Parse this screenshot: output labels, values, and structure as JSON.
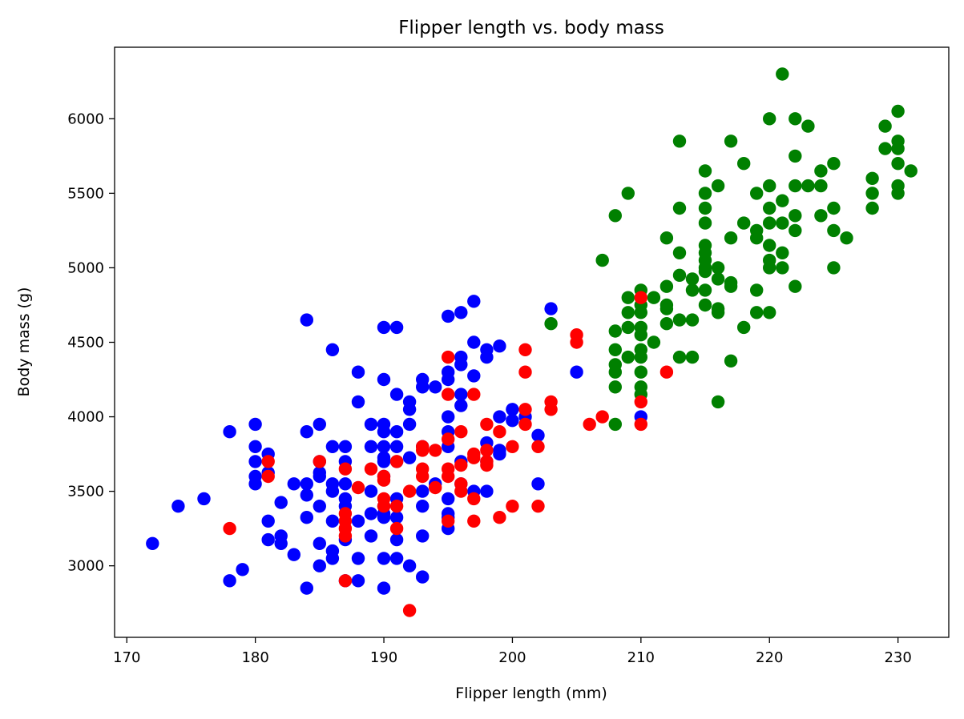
{
  "chart_data": {
    "type": "scatter",
    "title": "Flipper length vs. body mass",
    "xlabel": "Flipper length (mm)",
    "ylabel": "Body mass (g)",
    "xlim": [
      169.05,
      233.95
    ],
    "ylim": [
      2520,
      6480
    ],
    "xticks": [
      170,
      180,
      190,
      200,
      210,
      220,
      230
    ],
    "yticks": [
      3000,
      3500,
      4000,
      4500,
      5000,
      5500,
      6000
    ],
    "grid": false,
    "legend": "none",
    "series": [
      {
        "color": "#0000ff",
        "points": [
          [
            172,
            3150
          ],
          [
            174,
            3400
          ],
          [
            176,
            3450
          ],
          [
            178,
            3900
          ],
          [
            178,
            2900
          ],
          [
            179,
            2975
          ],
          [
            180,
            3950
          ],
          [
            180,
            3800
          ],
          [
            180,
            3700
          ],
          [
            180,
            3600
          ],
          [
            180,
            3550
          ],
          [
            181,
            3750
          ],
          [
            181,
            3625
          ],
          [
            181,
            3300
          ],
          [
            181,
            3175
          ],
          [
            182,
            3425
          ],
          [
            182,
            3200
          ],
          [
            182,
            3150
          ],
          [
            183,
            3550
          ],
          [
            183,
            3075
          ],
          [
            184,
            4650
          ],
          [
            184,
            3900
          ],
          [
            184,
            3550
          ],
          [
            184,
            3475
          ],
          [
            184,
            3325
          ],
          [
            184,
            2850
          ],
          [
            185,
            3950
          ],
          [
            185,
            3700
          ],
          [
            185,
            3625
          ],
          [
            185,
            3600
          ],
          [
            185,
            3400
          ],
          [
            185,
            3150
          ],
          [
            185,
            3000
          ],
          [
            186,
            4450
          ],
          [
            186,
            3800
          ],
          [
            186,
            3550
          ],
          [
            186,
            3500
          ],
          [
            186,
            3300
          ],
          [
            186,
            3100
          ],
          [
            186,
            3050
          ],
          [
            187,
            3800
          ],
          [
            187,
            3700
          ],
          [
            187,
            3550
          ],
          [
            187,
            3450
          ],
          [
            187,
            3400
          ],
          [
            187,
            3175
          ],
          [
            187,
            2900
          ],
          [
            188,
            4300
          ],
          [
            188,
            4100
          ],
          [
            188,
            3300
          ],
          [
            188,
            3050
          ],
          [
            188,
            2900
          ],
          [
            189,
            3950
          ],
          [
            189,
            3800
          ],
          [
            189,
            3500
          ],
          [
            189,
            3350
          ],
          [
            189,
            3200
          ],
          [
            190,
            4600
          ],
          [
            190,
            4250
          ],
          [
            190,
            3950
          ],
          [
            190,
            3900
          ],
          [
            190,
            3800
          ],
          [
            190,
            3725
          ],
          [
            190,
            3700
          ],
          [
            190,
            3600
          ],
          [
            190,
            3400
          ],
          [
            190,
            3350
          ],
          [
            190,
            3325
          ],
          [
            190,
            3050
          ],
          [
            190,
            2850
          ],
          [
            191,
            4600
          ],
          [
            191,
            4150
          ],
          [
            191,
            3900
          ],
          [
            191,
            3800
          ],
          [
            191,
            3700
          ],
          [
            191,
            3450
          ],
          [
            191,
            3325
          ],
          [
            191,
            3175
          ],
          [
            191,
            3050
          ],
          [
            192,
            4100
          ],
          [
            192,
            4050
          ],
          [
            192,
            3950
          ],
          [
            192,
            3725
          ],
          [
            192,
            3000
          ],
          [
            193,
            4250
          ],
          [
            193,
            4200
          ],
          [
            193,
            3800
          ],
          [
            193,
            3500
          ],
          [
            193,
            3400
          ],
          [
            193,
            3200
          ],
          [
            193,
            2925
          ],
          [
            194,
            4200
          ],
          [
            194,
            3550
          ],
          [
            195,
            4675
          ],
          [
            195,
            4300
          ],
          [
            195,
            4250
          ],
          [
            195,
            4000
          ],
          [
            195,
            3900
          ],
          [
            195,
            3800
          ],
          [
            195,
            3450
          ],
          [
            195,
            3350
          ],
          [
            195,
            3325
          ],
          [
            195,
            3250
          ],
          [
            196,
            4700
          ],
          [
            196,
            4400
          ],
          [
            196,
            4350
          ],
          [
            196,
            4150
          ],
          [
            196,
            4075
          ],
          [
            196,
            3700
          ],
          [
            196,
            3550
          ],
          [
            197,
            4775
          ],
          [
            197,
            4500
          ],
          [
            197,
            4275
          ],
          [
            197,
            3500
          ],
          [
            198,
            4450
          ],
          [
            198,
            4400
          ],
          [
            198,
            3825
          ],
          [
            198,
            3700
          ],
          [
            198,
            3500
          ],
          [
            199,
            4475
          ],
          [
            199,
            4000
          ],
          [
            199,
            3775
          ],
          [
            199,
            3750
          ],
          [
            200,
            4050
          ],
          [
            200,
            3975
          ],
          [
            201,
            4000
          ],
          [
            202,
            3875
          ],
          [
            202,
            3550
          ],
          [
            203,
            4725
          ],
          [
            205,
            4300
          ],
          [
            210,
            4000
          ]
        ]
      },
      {
        "color": "#008000",
        "points": [
          [
            203,
            4625
          ],
          [
            207,
            5050
          ],
          [
            208,
            5350
          ],
          [
            208,
            4575
          ],
          [
            208,
            4450
          ],
          [
            208,
            4350
          ],
          [
            208,
            4300
          ],
          [
            208,
            4200
          ],
          [
            208,
            3950
          ],
          [
            209,
            5500
          ],
          [
            209,
            4800
          ],
          [
            209,
            4700
          ],
          [
            209,
            4600
          ],
          [
            209,
            4400
          ],
          [
            210,
            4850
          ],
          [
            210,
            4750
          ],
          [
            210,
            4700
          ],
          [
            210,
            4600
          ],
          [
            210,
            4550
          ],
          [
            210,
            4450
          ],
          [
            210,
            4400
          ],
          [
            210,
            4300
          ],
          [
            210,
            4200
          ],
          [
            210,
            4150
          ],
          [
            211,
            4800
          ],
          [
            211,
            4500
          ],
          [
            212,
            5200
          ],
          [
            212,
            4875
          ],
          [
            212,
            4750
          ],
          [
            212,
            4725
          ],
          [
            212,
            4625
          ],
          [
            213,
            5850
          ],
          [
            213,
            5400
          ],
          [
            213,
            5100
          ],
          [
            213,
            4950
          ],
          [
            213,
            4650
          ],
          [
            213,
            4400
          ],
          [
            214,
            4925
          ],
          [
            214,
            4850
          ],
          [
            214,
            4650
          ],
          [
            214,
            4400
          ],
          [
            215,
            5650
          ],
          [
            215,
            5500
          ],
          [
            215,
            5400
          ],
          [
            215,
            5300
          ],
          [
            215,
            5150
          ],
          [
            215,
            5100
          ],
          [
            215,
            5050
          ],
          [
            215,
            5000
          ],
          [
            215,
            4975
          ],
          [
            215,
            4850
          ],
          [
            215,
            4750
          ],
          [
            216,
            5550
          ],
          [
            216,
            5000
          ],
          [
            216,
            4925
          ],
          [
            216,
            4725
          ],
          [
            216,
            4700
          ],
          [
            216,
            4100
          ],
          [
            217,
            5850
          ],
          [
            217,
            5200
          ],
          [
            217,
            4900
          ],
          [
            217,
            4875
          ],
          [
            217,
            4375
          ],
          [
            218,
            5700
          ],
          [
            218,
            5300
          ],
          [
            218,
            4600
          ],
          [
            219,
            5500
          ],
          [
            219,
            5250
          ],
          [
            219,
            5200
          ],
          [
            219,
            4850
          ],
          [
            219,
            4700
          ],
          [
            220,
            6000
          ],
          [
            220,
            5550
          ],
          [
            220,
            5400
          ],
          [
            220,
            5300
          ],
          [
            220,
            5150
          ],
          [
            220,
            5050
          ],
          [
            220,
            5000
          ],
          [
            220,
            4700
          ],
          [
            221,
            6300
          ],
          [
            221,
            5450
          ],
          [
            221,
            5300
          ],
          [
            221,
            5100
          ],
          [
            221,
            5000
          ],
          [
            222,
            6000
          ],
          [
            222,
            5750
          ],
          [
            222,
            5550
          ],
          [
            222,
            5350
          ],
          [
            222,
            5250
          ],
          [
            222,
            4875
          ],
          [
            223,
            5950
          ],
          [
            223,
            5550
          ],
          [
            224,
            5650
          ],
          [
            224,
            5550
          ],
          [
            224,
            5350
          ],
          [
            225,
            5700
          ],
          [
            225,
            5400
          ],
          [
            225,
            5250
          ],
          [
            225,
            5000
          ],
          [
            226,
            5200
          ],
          [
            228,
            5600
          ],
          [
            228,
            5500
          ],
          [
            228,
            5400
          ],
          [
            229,
            5950
          ],
          [
            229,
            5800
          ],
          [
            230,
            6050
          ],
          [
            230,
            5850
          ],
          [
            230,
            5800
          ],
          [
            230,
            5700
          ],
          [
            230,
            5550
          ],
          [
            230,
            5500
          ],
          [
            231,
            5650
          ]
        ]
      },
      {
        "color": "#ff0000",
        "points": [
          [
            178,
            3250
          ],
          [
            181,
            3700
          ],
          [
            181,
            3600
          ],
          [
            185,
            3700
          ],
          [
            187,
            3650
          ],
          [
            187,
            3350
          ],
          [
            187,
            3300
          ],
          [
            187,
            3250
          ],
          [
            187,
            3200
          ],
          [
            187,
            2900
          ],
          [
            188,
            3525
          ],
          [
            189,
            3650
          ],
          [
            190,
            3600
          ],
          [
            190,
            3575
          ],
          [
            190,
            3450
          ],
          [
            190,
            3400
          ],
          [
            191,
            3700
          ],
          [
            191,
            3400
          ],
          [
            191,
            3250
          ],
          [
            192,
            3500
          ],
          [
            192,
            2700
          ],
          [
            193,
            3800
          ],
          [
            193,
            3775
          ],
          [
            193,
            3650
          ],
          [
            193,
            3600
          ],
          [
            194,
            3775
          ],
          [
            194,
            3525
          ],
          [
            195,
            4400
          ],
          [
            195,
            4150
          ],
          [
            195,
            3850
          ],
          [
            195,
            3650
          ],
          [
            195,
            3600
          ],
          [
            195,
            3300
          ],
          [
            196,
            3900
          ],
          [
            196,
            3675
          ],
          [
            196,
            3550
          ],
          [
            196,
            3500
          ],
          [
            197,
            4150
          ],
          [
            197,
            3750
          ],
          [
            197,
            3725
          ],
          [
            197,
            3450
          ],
          [
            197,
            3300
          ],
          [
            198,
            3950
          ],
          [
            198,
            3775
          ],
          [
            198,
            3700
          ],
          [
            198,
            3675
          ],
          [
            199,
            3900
          ],
          [
            199,
            3325
          ],
          [
            200,
            3800
          ],
          [
            200,
            3400
          ],
          [
            201,
            4450
          ],
          [
            201,
            4300
          ],
          [
            201,
            4050
          ],
          [
            201,
            3950
          ],
          [
            202,
            3800
          ],
          [
            202,
            3400
          ],
          [
            203,
            4100
          ],
          [
            203,
            4050
          ],
          [
            205,
            4550
          ],
          [
            205,
            4500
          ],
          [
            206,
            3950
          ],
          [
            207,
            4000
          ],
          [
            210,
            4800
          ],
          [
            210,
            4100
          ],
          [
            210,
            3950
          ],
          [
            212,
            4300
          ]
        ]
      }
    ]
  }
}
